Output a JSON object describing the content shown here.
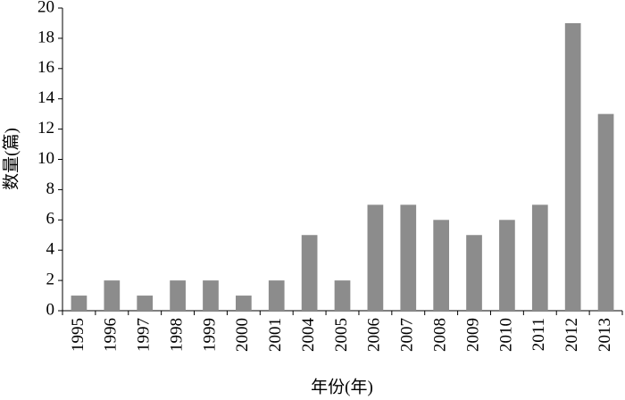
{
  "chart_data": {
    "type": "bar",
    "x_label": "年份(年)",
    "y_label": "数量(篇)",
    "categories": [
      "1995",
      "1996",
      "1997",
      "1998",
      "1999",
      "2000",
      "2001",
      "2004",
      "2005",
      "2006",
      "2007",
      "2008",
      "2009",
      "2010",
      "2011",
      "2012",
      "2013"
    ],
    "values": [
      1,
      2,
      1,
      2,
      2,
      1,
      2,
      5,
      2,
      7,
      7,
      6,
      5,
      6,
      7,
      19,
      13
    ],
    "color": "#8c8c8c",
    "ylim": [
      0,
      20
    ],
    "yticks": [
      0,
      2,
      4,
      6,
      8,
      10,
      12,
      14,
      16,
      18,
      20
    ],
    "grid": false
  }
}
